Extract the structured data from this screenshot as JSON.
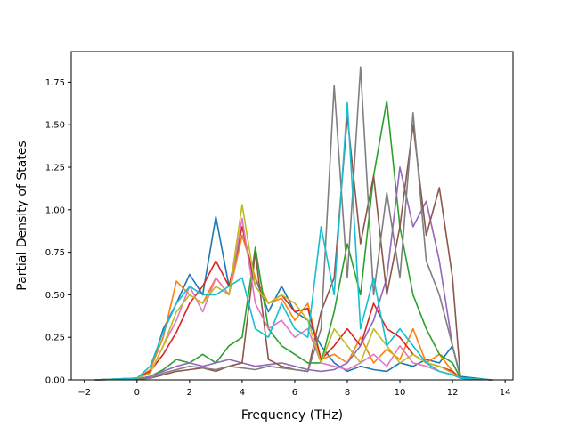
{
  "chart_data": {
    "type": "line",
    "title": "",
    "xlabel": "Frequency (THz)",
    "ylabel": "Partial Density of States",
    "xlim": [
      -2.5,
      14.3
    ],
    "ylim": [
      0,
      1.93
    ],
    "xticks": [
      -2,
      0,
      2,
      4,
      6,
      8,
      10,
      12,
      14
    ],
    "yticks": [
      0.0,
      0.25,
      0.5,
      0.75,
      1.0,
      1.25,
      1.5,
      1.75
    ],
    "xtick_labels": [
      "−2",
      "0",
      "2",
      "4",
      "6",
      "8",
      "10",
      "12",
      "14"
    ],
    "ytick_labels": [
      "0.00",
      "0.25",
      "0.50",
      "0.75",
      "1.00",
      "1.25",
      "1.50",
      "1.75"
    ],
    "grid": false,
    "legend": "none",
    "series": [
      {
        "color": "#1f77b4",
        "x": [
          -1.6,
          0,
          0.5,
          1,
          1.5,
          2,
          2.5,
          3,
          3.5,
          4,
          4.5,
          5,
          5.5,
          6,
          6.5,
          7,
          7.5,
          8,
          8.5,
          9,
          9.5,
          10,
          10.5,
          11,
          11.5,
          12,
          12.3,
          13.5
        ],
        "y": [
          0,
          0.01,
          0.05,
          0.3,
          0.45,
          0.62,
          0.5,
          0.96,
          0.55,
          0.85,
          0.6,
          0.4,
          0.55,
          0.4,
          0.35,
          0.2,
          0.1,
          0.05,
          0.08,
          0.06,
          0.05,
          0.1,
          0.08,
          0.12,
          0.1,
          0.2,
          0.02,
          0
        ]
      },
      {
        "color": "#ff7f0e",
        "x": [
          -1.6,
          0,
          0.5,
          1,
          1.5,
          2,
          2.5,
          3,
          3.5,
          4,
          4.5,
          5,
          5.5,
          6,
          6.5,
          7,
          7.5,
          8,
          8.5,
          9,
          9.5,
          10,
          10.5,
          11,
          11.5,
          12,
          12.3,
          13.5
        ],
        "y": [
          0,
          0.01,
          0.06,
          0.25,
          0.58,
          0.5,
          0.45,
          0.6,
          0.5,
          0.85,
          0.6,
          0.45,
          0.48,
          0.35,
          0.45,
          0.12,
          0.15,
          0.1,
          0.25,
          0.1,
          0.18,
          0.12,
          0.3,
          0.1,
          0.15,
          0.05,
          0.01,
          0
        ]
      },
      {
        "color": "#2ca02c",
        "x": [
          -1.6,
          0,
          0.5,
          1,
          1.5,
          2,
          2.5,
          3,
          3.5,
          4,
          4.5,
          5,
          5.5,
          6,
          6.5,
          7,
          7.5,
          8,
          8.5,
          9,
          9.5,
          10,
          10.5,
          11,
          11.5,
          12,
          12.3,
          13.5
        ],
        "y": [
          0,
          0.005,
          0.02,
          0.06,
          0.12,
          0.1,
          0.15,
          0.1,
          0.2,
          0.25,
          0.78,
          0.3,
          0.2,
          0.15,
          0.1,
          0.1,
          0.4,
          0.8,
          0.5,
          1.2,
          1.64,
          0.9,
          0.5,
          0.3,
          0.15,
          0.1,
          0.01,
          0
        ]
      },
      {
        "color": "#d62728",
        "x": [
          -1.6,
          0,
          0.5,
          1,
          1.5,
          2,
          2.5,
          3,
          3.5,
          4,
          4.5,
          5,
          5.5,
          6,
          6.5,
          7,
          7.5,
          8,
          8.5,
          9,
          9.5,
          10,
          10.5,
          11,
          11.5,
          12,
          12.3,
          13.5
        ],
        "y": [
          0,
          0.01,
          0.05,
          0.15,
          0.28,
          0.45,
          0.55,
          0.7,
          0.55,
          0.9,
          0.55,
          0.45,
          0.5,
          0.4,
          0.42,
          0.12,
          0.2,
          0.3,
          0.2,
          0.45,
          0.3,
          0.25,
          0.15,
          0.1,
          0.08,
          0.05,
          0.01,
          0
        ]
      },
      {
        "color": "#9467bd",
        "x": [
          -1.6,
          0,
          0.5,
          1,
          1.5,
          2,
          2.5,
          3,
          3.5,
          4,
          4.5,
          5,
          5.5,
          6,
          6.5,
          7,
          7.5,
          8,
          8.5,
          9,
          9.5,
          10,
          10.5,
          11,
          11.5,
          12,
          12.3,
          13.5
        ],
        "y": [
          0,
          0.005,
          0.02,
          0.05,
          0.08,
          0.1,
          0.08,
          0.1,
          0.12,
          0.1,
          0.08,
          0.09,
          0.1,
          0.08,
          0.06,
          0.05,
          0.06,
          0.1,
          0.2,
          0.35,
          0.6,
          1.25,
          0.9,
          1.05,
          0.7,
          0.2,
          0.01,
          0
        ]
      },
      {
        "color": "#8c564b",
        "x": [
          -1.6,
          0,
          0.5,
          1,
          1.5,
          2,
          2.5,
          3,
          3.5,
          4,
          4.5,
          5,
          5.5,
          6,
          6.5,
          7,
          7.5,
          8,
          8.5,
          9,
          9.5,
          10,
          10.5,
          11,
          11.5,
          12,
          12.3,
          13.5
        ],
        "y": [
          0,
          0.005,
          0.01,
          0.03,
          0.05,
          0.06,
          0.07,
          0.05,
          0.08,
          0.1,
          0.75,
          0.12,
          0.08,
          0.06,
          0.05,
          0.4,
          0.6,
          1.55,
          0.8,
          1.2,
          0.5,
          0.9,
          1.5,
          0.85,
          1.13,
          0.6,
          0.01,
          0
        ]
      },
      {
        "color": "#e377c2",
        "x": [
          -1.6,
          0,
          0.5,
          1,
          1.5,
          2,
          2.5,
          3,
          3.5,
          4,
          4.5,
          5,
          5.5,
          6,
          6.5,
          7,
          7.5,
          8,
          8.5,
          9,
          9.5,
          10,
          10.5,
          11,
          11.5,
          12,
          12.3,
          13.5
        ],
        "y": [
          0,
          0.01,
          0.04,
          0.2,
          0.35,
          0.55,
          0.4,
          0.6,
          0.5,
          0.95,
          0.45,
          0.3,
          0.35,
          0.25,
          0.3,
          0.1,
          0.08,
          0.06,
          0.1,
          0.15,
          0.08,
          0.2,
          0.1,
          0.08,
          0.05,
          0.03,
          0.01,
          0
        ]
      },
      {
        "color": "#7f7f7f",
        "x": [
          -1.6,
          0,
          0.5,
          1,
          1.5,
          2,
          2.5,
          3,
          3.5,
          4,
          4.5,
          5,
          5.5,
          6,
          6.5,
          7,
          7.5,
          8,
          8.5,
          9,
          9.5,
          10,
          10.5,
          11,
          11.5,
          12,
          12.3,
          13.5
        ],
        "y": [
          0,
          0.005,
          0.01,
          0.04,
          0.06,
          0.08,
          0.07,
          0.06,
          0.08,
          0.07,
          0.06,
          0.08,
          0.07,
          0.06,
          0.05,
          0.3,
          1.73,
          0.6,
          1.84,
          0.5,
          1.1,
          0.6,
          1.57,
          0.7,
          0.5,
          0.2,
          0.01,
          0
        ]
      },
      {
        "color": "#bcbd22",
        "x": [
          -1.6,
          0,
          0.5,
          1,
          1.5,
          2,
          2.5,
          3,
          3.5,
          4,
          4.5,
          5,
          5.5,
          6,
          6.5,
          7,
          7.5,
          8,
          8.5,
          9,
          9.5,
          10,
          10.5,
          11,
          11.5,
          12,
          12.3,
          13.5
        ],
        "y": [
          0,
          0.01,
          0.04,
          0.2,
          0.4,
          0.5,
          0.45,
          0.55,
          0.5,
          1.03,
          0.55,
          0.45,
          0.5,
          0.45,
          0.35,
          0.1,
          0.3,
          0.2,
          0.1,
          0.3,
          0.2,
          0.1,
          0.15,
          0.1,
          0.08,
          0.04,
          0.01,
          0
        ]
      },
      {
        "color": "#17becf",
        "x": [
          -1.6,
          0,
          0.5,
          1,
          1.5,
          2,
          2.5,
          3,
          3.5,
          4,
          4.5,
          5,
          5.5,
          6,
          6.5,
          7,
          7.5,
          8,
          8.5,
          9,
          9.5,
          10,
          10.5,
          11,
          11.5,
          12,
          12.3,
          13.5
        ],
        "y": [
          0,
          0.01,
          0.08,
          0.28,
          0.45,
          0.55,
          0.5,
          0.5,
          0.55,
          0.6,
          0.3,
          0.25,
          0.45,
          0.3,
          0.25,
          0.9,
          0.5,
          1.63,
          0.3,
          0.6,
          0.2,
          0.3,
          0.2,
          0.1,
          0.05,
          0.03,
          0.01,
          0
        ]
      }
    ]
  }
}
